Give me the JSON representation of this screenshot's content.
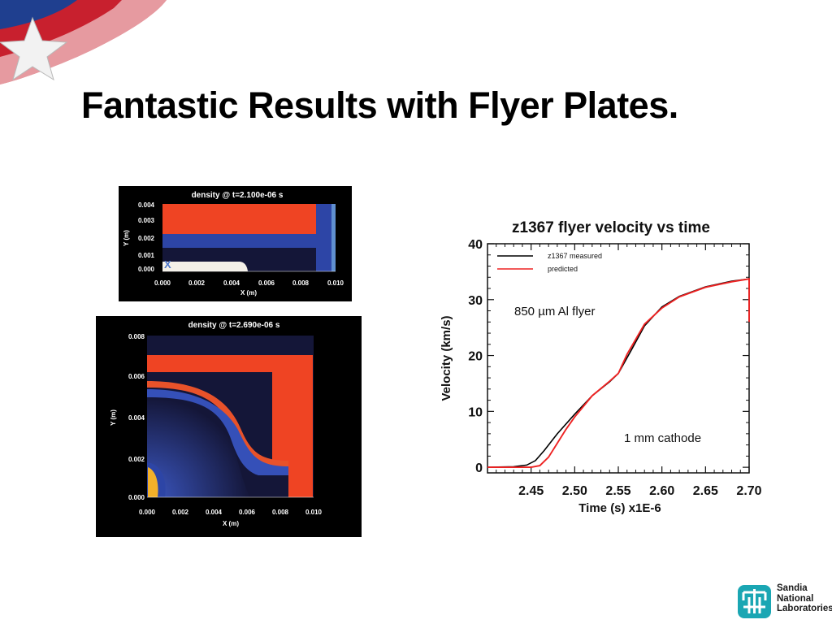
{
  "slide": {
    "title": "Fantastic Results with Flyer Plates."
  },
  "logo": {
    "lines": [
      "Sandia",
      "National",
      "Laboratories"
    ],
    "colors": {
      "teal": "#1aa6b3"
    }
  },
  "colors": {
    "flag_red": "#c8202e",
    "flag_blue": "#1f3f8f",
    "sim_background": "#141638",
    "sim_red": "#ef4423",
    "sim_blue": "#2d45a6",
    "measured_line": "#000000",
    "predicted_line": "#ee2222"
  },
  "chart_data": [
    {
      "type": "heatmap",
      "title": "density @ t=2.100e-06 s",
      "xlabel": "X (m)",
      "ylabel": "Y (m)",
      "xlim": [
        0.0,
        0.01
      ],
      "ylim": [
        0.0,
        0.004
      ],
      "xticks": [
        "0.000",
        "0.002",
        "0.004",
        "0.006",
        "0.008",
        "0.010"
      ],
      "yticks": [
        "0.000",
        "0.001",
        "0.002",
        "0.003",
        "0.004"
      ],
      "marker": "X"
    },
    {
      "type": "heatmap",
      "title": "density @ t=2.690e-06 s",
      "xlabel": "X (m)",
      "ylabel": "Y (m)",
      "xlim": [
        0.0,
        0.01
      ],
      "ylim": [
        0.0,
        0.008
      ],
      "xticks": [
        "0.000",
        "0.002",
        "0.004",
        "0.006",
        "0.008",
        "0.010"
      ],
      "yticks": [
        "0.000",
        "0.002",
        "0.004",
        "0.006",
        "0.008"
      ]
    },
    {
      "type": "line",
      "title": "z1367 flyer velocity vs time",
      "xlabel": "Time  (s) x1E-6",
      "ylabel": "Velocity  (km/s)",
      "xlim": [
        2.4,
        2.7
      ],
      "ylim": [
        -1,
        40
      ],
      "xticks": [
        2.45,
        2.5,
        2.55,
        2.6,
        2.65,
        2.7
      ],
      "xtick_labels": [
        "2.45",
        "2.50",
        "2.55",
        "2.60",
        "2.65",
        "2.70"
      ],
      "yticks": [
        0,
        10,
        20,
        30,
        40
      ],
      "ytick_labels": [
        "0",
        "10",
        "20",
        "30",
        "40"
      ],
      "legend_position": "top-left",
      "annotations": [
        "850 µm Al flyer",
        "1 mm cathode"
      ],
      "series": [
        {
          "name": "z1367 measured",
          "color": "#000000",
          "x": [
            2.4,
            2.43,
            2.445,
            2.455,
            2.465,
            2.48,
            2.5,
            2.52,
            2.54,
            2.55,
            2.565,
            2.58,
            2.6,
            2.62,
            2.65,
            2.68,
            2.7
          ],
          "y": [
            0,
            0.1,
            0.4,
            1.2,
            3.0,
            6.0,
            9.5,
            12.8,
            15.3,
            16.8,
            21.0,
            25.3,
            28.7,
            30.6,
            32.3,
            33.3,
            33.7
          ]
        },
        {
          "name": "predicted",
          "color": "#ee2222",
          "x": [
            2.4,
            2.45,
            2.46,
            2.47,
            2.48,
            2.49,
            2.5,
            2.52,
            2.54,
            2.55,
            2.56,
            2.58,
            2.6,
            2.62,
            2.65,
            2.68,
            2.7,
            2.7
          ],
          "y": [
            0,
            0,
            0.3,
            1.8,
            4.3,
            6.8,
            9.0,
            12.8,
            15.4,
            16.8,
            20.2,
            25.6,
            28.5,
            30.5,
            32.2,
            33.2,
            33.7,
            26.0
          ]
        }
      ]
    }
  ]
}
